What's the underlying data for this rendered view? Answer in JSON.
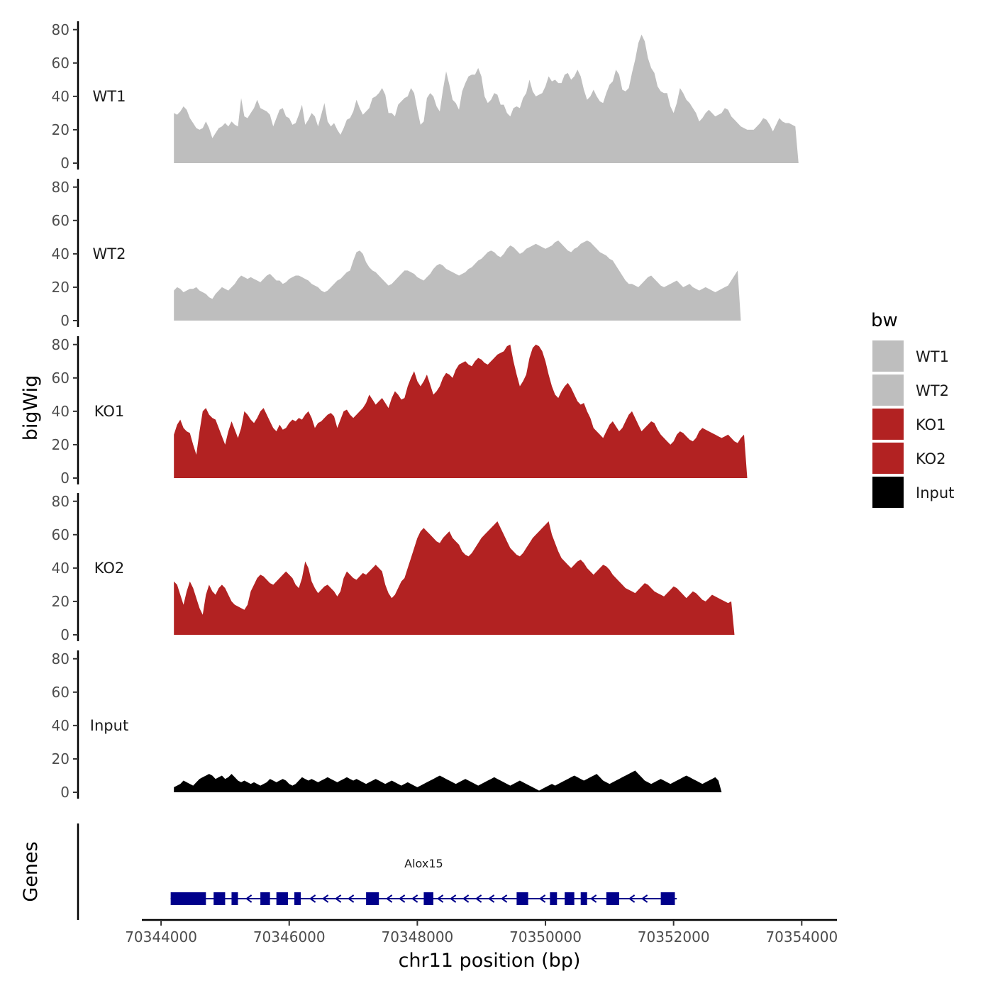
{
  "chart_data": {
    "type": "area",
    "xlabel": "chr11 position (bp)",
    "ylabel": "bigWig",
    "xlim": [
      70343700,
      70354550
    ],
    "x_ticks": [
      70344000,
      70346000,
      70348000,
      70350000,
      70352000,
      70354000
    ],
    "x_tick_labels": [
      "70344000",
      "70346000",
      "70348000",
      "70350000",
      "70352000",
      "70354000"
    ],
    "ylim": [
      0,
      85
    ],
    "y_ticks": [
      0,
      20,
      40,
      60,
      80
    ],
    "y_tick_labels": [
      "0",
      "20",
      "40",
      "60",
      "80"
    ],
    "x_start": 70344200,
    "x_step": 50,
    "series": [
      {
        "name": "WT1",
        "color": "#bebebe",
        "values": [
          30,
          29,
          31,
          34,
          32,
          27,
          24,
          21,
          20,
          21,
          25,
          21,
          15,
          18,
          21,
          22,
          24,
          22,
          25,
          23,
          22,
          39,
          28,
          27,
          30,
          33,
          38,
          33,
          32,
          31,
          29,
          22,
          27,
          32,
          33,
          28,
          27,
          23,
          24,
          29,
          35,
          23,
          26,
          30,
          28,
          22,
          29,
          36,
          25,
          22,
          24,
          20,
          17,
          21,
          26,
          27,
          31,
          38,
          33,
          29,
          31,
          33,
          39,
          40,
          42,
          45,
          41,
          30,
          30,
          28,
          35,
          37,
          39,
          40,
          45,
          42,
          32,
          23,
          25,
          39,
          42,
          40,
          34,
          31,
          44,
          55,
          47,
          38,
          36,
          32,
          43,
          48,
          52,
          53,
          53,
          57,
          52,
          40,
          36,
          38,
          42,
          41,
          35,
          35,
          30,
          28,
          33,
          34,
          33,
          39,
          42,
          50,
          43,
          40,
          41,
          42,
          46,
          52,
          49,
          50,
          48,
          48,
          53,
          54,
          50,
          52,
          56,
          52,
          44,
          38,
          40,
          44,
          40,
          37,
          36,
          42,
          47,
          49,
          56,
          53,
          44,
          43,
          45,
          54,
          62,
          72,
          77,
          73,
          63,
          57,
          54,
          46,
          43,
          42,
          42,
          34,
          30,
          36,
          45,
          42,
          38,
          36,
          33,
          30,
          25,
          27,
          30,
          32,
          30,
          28,
          29,
          30,
          33,
          32,
          28,
          26,
          24,
          22,
          21,
          20,
          20,
          20,
          22,
          24,
          27,
          26,
          23,
          19,
          23,
          27,
          25,
          24,
          24,
          23,
          22,
          0
        ]
      },
      {
        "name": "WT2",
        "color": "#bebebe",
        "values": [
          18,
          20,
          19,
          17,
          18,
          19,
          19,
          20,
          18,
          17,
          16,
          14,
          13,
          16,
          18,
          20,
          19,
          18,
          20,
          22,
          25,
          27,
          26,
          25,
          26,
          25,
          24,
          23,
          25,
          27,
          28,
          26,
          24,
          24,
          22,
          23,
          25,
          26,
          27,
          27,
          26,
          25,
          24,
          22,
          21,
          20,
          18,
          17,
          18,
          20,
          22,
          24,
          25,
          27,
          29,
          30,
          36,
          41,
          42,
          40,
          35,
          32,
          30,
          29,
          27,
          25,
          23,
          21,
          22,
          24,
          26,
          28,
          30,
          30,
          29,
          28,
          26,
          25,
          24,
          26,
          28,
          31,
          33,
          34,
          33,
          31,
          30,
          29,
          28,
          27,
          28,
          29,
          31,
          32,
          34,
          36,
          37,
          39,
          41,
          42,
          41,
          39,
          38,
          40,
          43,
          45,
          44,
          42,
          40,
          41,
          43,
          44,
          45,
          46,
          45,
          44,
          43,
          44,
          45,
          47,
          48,
          46,
          44,
          42,
          41,
          43,
          44,
          46,
          47,
          48,
          47,
          45,
          43,
          41,
          40,
          39,
          37,
          36,
          33,
          30,
          27,
          24,
          22,
          22,
          21,
          20,
          22,
          24,
          26,
          27,
          25,
          23,
          21,
          20,
          21,
          22,
          23,
          24,
          22,
          20,
          21,
          22,
          20,
          19,
          18,
          19,
          20,
          19,
          18,
          17,
          18,
          19,
          20,
          21,
          24,
          27,
          30,
          0
        ]
      },
      {
        "name": "KO1",
        "color": "#b22222",
        "values": [
          26,
          32,
          35,
          30,
          28,
          27,
          20,
          14,
          28,
          40,
          42,
          38,
          36,
          35,
          30,
          25,
          20,
          28,
          34,
          29,
          24,
          30,
          40,
          38,
          35,
          33,
          36,
          40,
          42,
          38,
          34,
          30,
          28,
          32,
          29,
          30,
          33,
          35,
          34,
          36,
          35,
          38,
          40,
          36,
          30,
          33,
          34,
          36,
          38,
          39,
          37,
          30,
          35,
          40,
          41,
          38,
          36,
          38,
          40,
          42,
          45,
          50,
          47,
          44,
          46,
          48,
          45,
          42,
          48,
          52,
          50,
          47,
          48,
          55,
          60,
          64,
          58,
          55,
          58,
          62,
          56,
          50,
          52,
          55,
          60,
          63,
          62,
          60,
          65,
          68,
          69,
          70,
          68,
          67,
          70,
          72,
          71,
          69,
          68,
          70,
          72,
          74,
          75,
          76,
          79,
          80,
          70,
          62,
          55,
          58,
          62,
          72,
          78,
          80,
          79,
          76,
          70,
          62,
          55,
          50,
          48,
          52,
          55,
          57,
          54,
          50,
          46,
          44,
          45,
          40,
          36,
          30,
          28,
          26,
          24,
          28,
          32,
          34,
          31,
          28,
          30,
          34,
          38,
          40,
          36,
          32,
          28,
          30,
          32,
          34,
          33,
          29,
          26,
          24,
          22,
          20,
          22,
          26,
          28,
          27,
          25,
          23,
          22,
          24,
          28,
          30,
          29,
          28,
          27,
          26,
          25,
          24,
          25,
          26,
          24,
          22,
          21,
          24,
          26,
          0
        ]
      },
      {
        "name": "KO2",
        "color": "#b22222",
        "values": [
          32,
          30,
          24,
          18,
          26,
          32,
          28,
          22,
          16,
          12,
          24,
          30,
          26,
          24,
          28,
          30,
          28,
          24,
          20,
          18,
          17,
          16,
          15,
          18,
          26,
          30,
          34,
          36,
          35,
          33,
          31,
          30,
          32,
          34,
          36,
          38,
          36,
          34,
          30,
          28,
          34,
          44,
          40,
          32,
          28,
          25,
          27,
          29,
          30,
          28,
          26,
          23,
          26,
          34,
          38,
          36,
          34,
          33,
          35,
          37,
          36,
          38,
          40,
          42,
          40,
          38,
          30,
          25,
          22,
          24,
          28,
          32,
          34,
          40,
          46,
          52,
          58,
          62,
          64,
          62,
          60,
          58,
          56,
          55,
          58,
          60,
          62,
          58,
          56,
          54,
          50,
          48,
          47,
          49,
          52,
          55,
          58,
          60,
          62,
          64,
          66,
          68,
          64,
          60,
          56,
          52,
          50,
          48,
          47,
          49,
          52,
          55,
          58,
          60,
          62,
          64,
          66,
          68,
          60,
          55,
          50,
          46,
          44,
          42,
          40,
          42,
          44,
          45,
          43,
          40,
          38,
          36,
          38,
          40,
          42,
          41,
          39,
          36,
          34,
          32,
          30,
          28,
          27,
          26,
          25,
          27,
          29,
          31,
          30,
          28,
          26,
          25,
          24,
          23,
          25,
          27,
          29,
          28,
          26,
          24,
          22,
          24,
          26,
          25,
          23,
          21,
          20,
          22,
          24,
          23,
          22,
          21,
          20,
          19,
          20,
          0
        ]
      },
      {
        "name": "Input",
        "color": "#000000",
        "values": [
          3,
          4,
          5,
          7,
          6,
          5,
          4,
          6,
          8,
          9,
          10,
          11,
          10,
          8,
          9,
          10,
          8,
          9,
          11,
          9,
          7,
          6,
          7,
          6,
          5,
          6,
          5,
          4,
          5,
          6,
          8,
          7,
          6,
          7,
          8,
          7,
          5,
          4,
          5,
          7,
          9,
          8,
          7,
          8,
          7,
          6,
          7,
          8,
          9,
          8,
          7,
          6,
          7,
          8,
          9,
          8,
          7,
          8,
          7,
          6,
          5,
          6,
          7,
          8,
          7,
          6,
          5,
          6,
          7,
          6,
          5,
          4,
          5,
          6,
          5,
          4,
          3,
          4,
          5,
          6,
          7,
          8,
          9,
          10,
          9,
          8,
          7,
          6,
          5,
          6,
          7,
          8,
          7,
          6,
          5,
          4,
          5,
          6,
          7,
          8,
          9,
          8,
          7,
          6,
          5,
          4,
          5,
          6,
          7,
          6,
          5,
          4,
          3,
          2,
          1,
          2,
          3,
          4,
          5,
          4,
          5,
          6,
          7,
          8,
          9,
          10,
          9,
          8,
          7,
          8,
          9,
          10,
          11,
          9,
          7,
          6,
          5,
          6,
          7,
          8,
          9,
          10,
          11,
          12,
          13,
          11,
          9,
          7,
          6,
          5,
          6,
          7,
          8,
          7,
          6,
          5,
          6,
          7,
          8,
          9,
          10,
          9,
          8,
          7,
          6,
          5,
          6,
          7,
          8,
          9,
          7,
          0
        ]
      }
    ],
    "legend": {
      "title": "bw",
      "position": "right",
      "entries": [
        "WT1",
        "WT2",
        "KO1",
        "KO2",
        "Input"
      ]
    },
    "genes_track": {
      "label": "Genes",
      "gene_name": "Alox15",
      "strand": "-",
      "color": "#00008b",
      "start": 70344150,
      "end": 70352050,
      "exons": [
        [
          70344150,
          70344320
        ],
        [
          70344320,
          70344700
        ],
        [
          70344820,
          70345000
        ],
        [
          70345100,
          70345200
        ],
        [
          70345550,
          70345700
        ],
        [
          70345800,
          70345980
        ],
        [
          70346080,
          70346180
        ],
        [
          70347200,
          70347400
        ],
        [
          70348100,
          70348250
        ],
        [
          70349550,
          70349730
        ],
        [
          70350070,
          70350180
        ],
        [
          70350300,
          70350450
        ],
        [
          70350550,
          70350650
        ],
        [
          70350950,
          70351150
        ],
        [
          70351800,
          70352020
        ]
      ]
    }
  }
}
